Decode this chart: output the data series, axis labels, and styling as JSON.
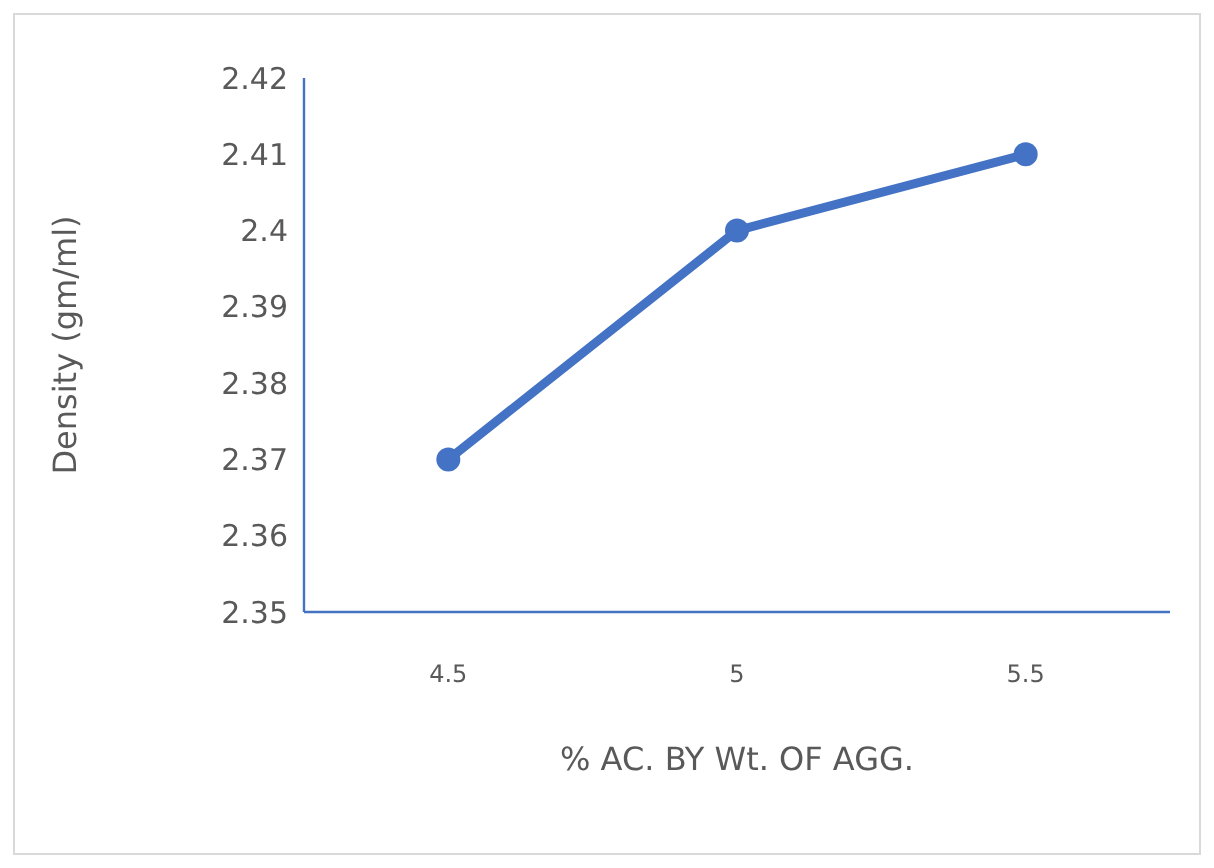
{
  "chart_data": {
    "type": "line",
    "xlabel": "% AC. BY Wt. OF AGG.",
    "ylabel": "Density (gm/ml)",
    "categories": [
      "4.5",
      "5",
      "5.5"
    ],
    "series": [
      {
        "color": "#4472c4",
        "values": [
          2.37,
          2.4,
          2.41
        ]
      }
    ],
    "ylim": [
      2.35,
      2.42
    ],
    "yticks": [
      2.35,
      2.36,
      2.37,
      2.38,
      2.39,
      2.4,
      2.41,
      2.42
    ],
    "grid": false,
    "marker": "circle",
    "line_style": "solid"
  }
}
